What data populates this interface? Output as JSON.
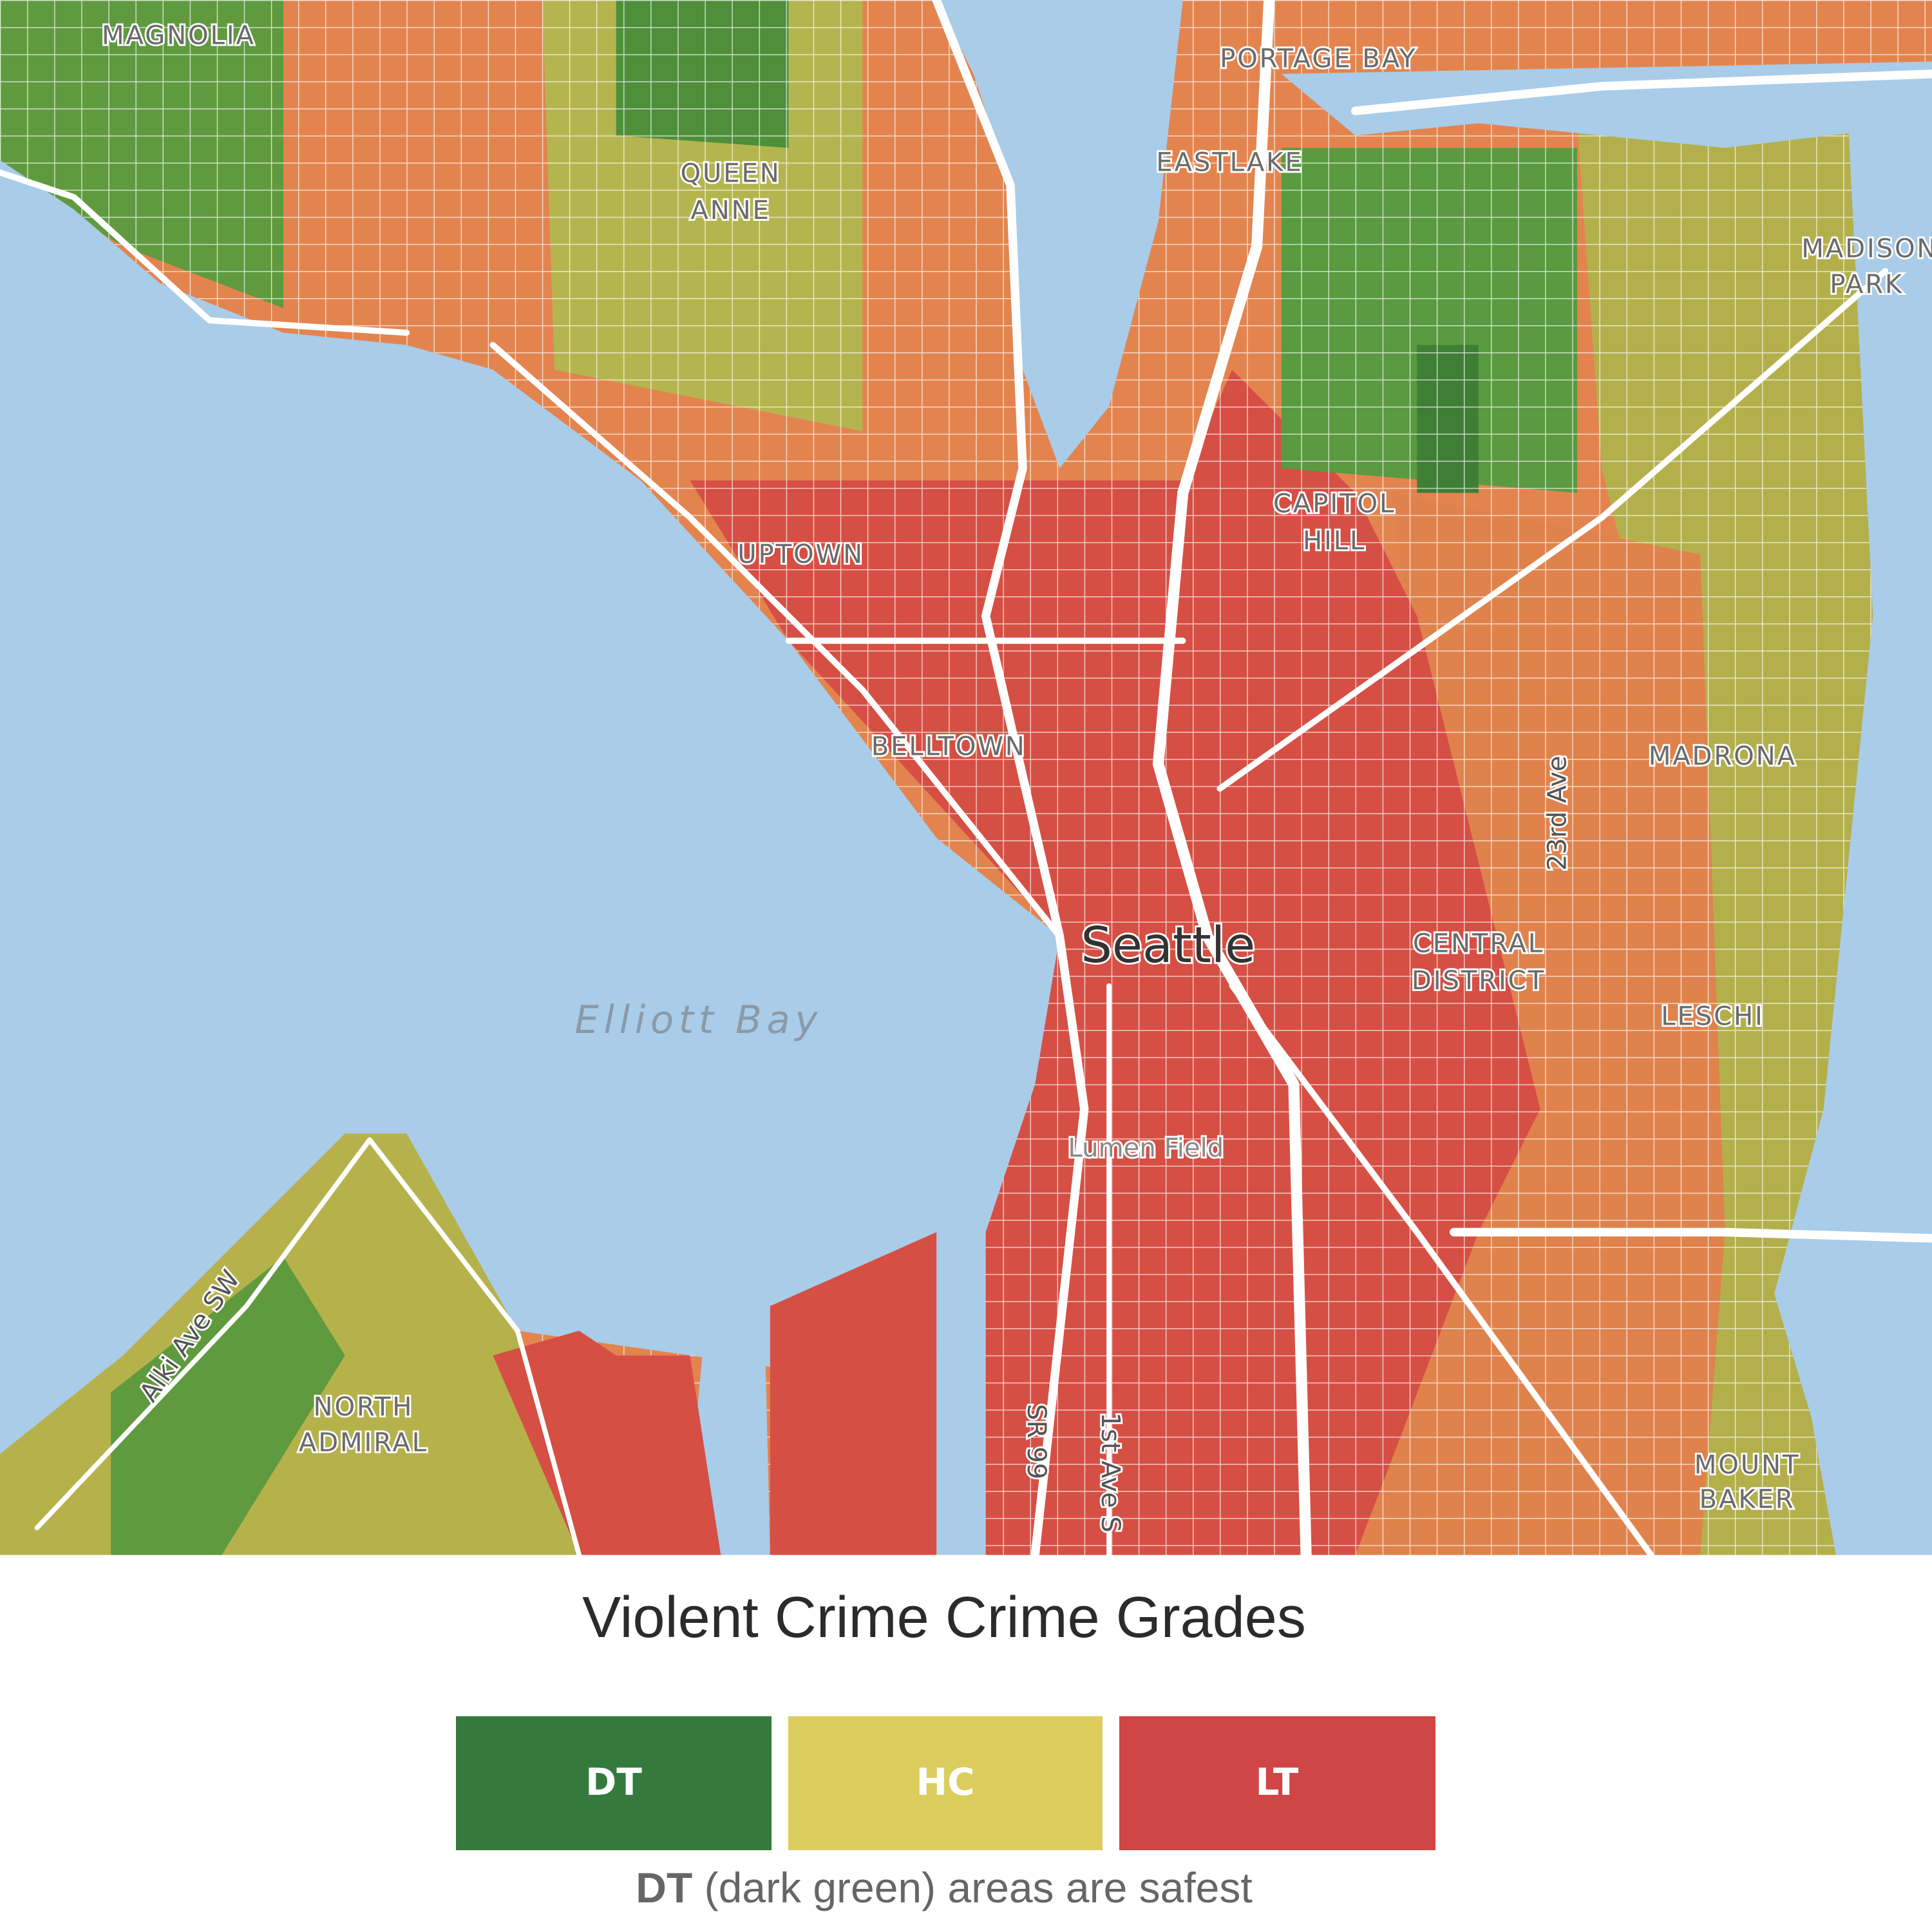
{
  "map": {
    "labels": [
      {
        "text": "MAGNOLIA"
      },
      {
        "text": "QUEEN"
      },
      {
        "text": "ANNE"
      },
      {
        "text": "PORTAGE BAY"
      },
      {
        "text": "EASTLAKE"
      },
      {
        "text": "MADISON"
      },
      {
        "text": "PARK"
      },
      {
        "text": "CAPITOL"
      },
      {
        "text": "HILL"
      },
      {
        "text": "UPTOWN"
      },
      {
        "text": "BELLTOWN"
      },
      {
        "text": "MADRONA"
      },
      {
        "text": "23rd Ave"
      },
      {
        "text": "Seattle"
      },
      {
        "text": "CENTRAL"
      },
      {
        "text": "DISTRICT"
      },
      {
        "text": "LESCHI"
      },
      {
        "text": "Elliott Bay"
      },
      {
        "text": "Lumen Field"
      },
      {
        "text": "Alki Ave SW"
      },
      {
        "text": "NORTH"
      },
      {
        "text": "ADMIRAL"
      },
      {
        "text": "SR 99"
      },
      {
        "text": "1st Ave S"
      },
      {
        "text": "MOUNT"
      },
      {
        "text": "BAKER"
      }
    ]
  },
  "title": "Violent Crime Crime Grades",
  "legend": [
    {
      "label": "DT",
      "color": "#357a3d"
    },
    {
      "label": "HC",
      "color": "#dccd5e"
    },
    {
      "label": "LT",
      "color": "#d04545"
    }
  ],
  "footnote": {
    "key": "DT",
    "text": "(dark green) areas are safest"
  }
}
